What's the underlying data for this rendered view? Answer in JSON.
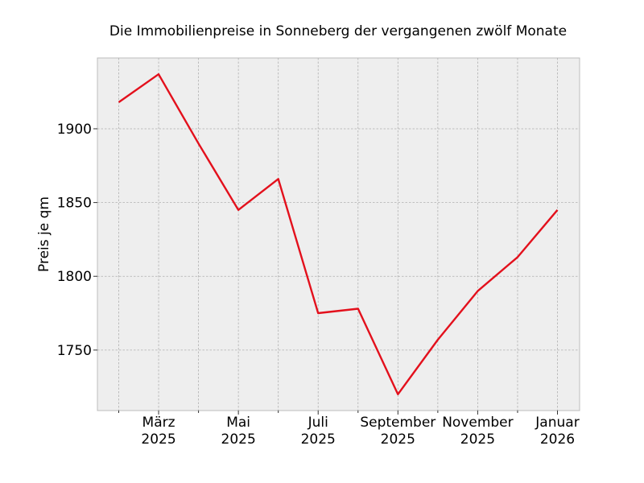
{
  "chart_data": {
    "type": "line",
    "title": "Die Immobilienpreise in Sonneberg der vergangenen zwölf Monate",
    "xlabel": "",
    "ylabel": "Preis je qm",
    "x": [
      "2025-02",
      "2025-03",
      "2025-04",
      "2025-05",
      "2025-06",
      "2025-07",
      "2025-08",
      "2025-09",
      "2025-10",
      "2025-11",
      "2025-12",
      "2026-01"
    ],
    "series": [
      {
        "values": [
          1918,
          1937,
          1890,
          1845,
          1866,
          1775,
          1778,
          1720,
          1757,
          1790,
          1813,
          1845
        ]
      }
    ],
    "x_ticks": [
      {
        "month": "Feb",
        "labelled": false
      },
      {
        "month": "März",
        "year": "2025",
        "labelled": true
      },
      {
        "month": "Apr",
        "labelled": false
      },
      {
        "month": "Mai",
        "year": "2025",
        "labelled": true
      },
      {
        "month": "Jun",
        "labelled": false
      },
      {
        "month": "Juli",
        "year": "2025",
        "labelled": true
      },
      {
        "month": "Aug",
        "labelled": false
      },
      {
        "month": "September",
        "year": "2025",
        "labelled": true
      },
      {
        "month": "Okt",
        "labelled": false
      },
      {
        "month": "November",
        "year": "2025",
        "labelled": true
      },
      {
        "month": "Dez",
        "labelled": false
      },
      {
        "month": "Januar",
        "year": "2026",
        "labelled": true
      }
    ],
    "y_ticks": [
      1750,
      1800,
      1850,
      1900
    ],
    "ylim": [
      1709,
      1948
    ],
    "grid": true,
    "legend": "none",
    "colors": {
      "line": "#e3101c",
      "background": "#eeeeee",
      "grid": "#b0b0b0"
    }
  }
}
